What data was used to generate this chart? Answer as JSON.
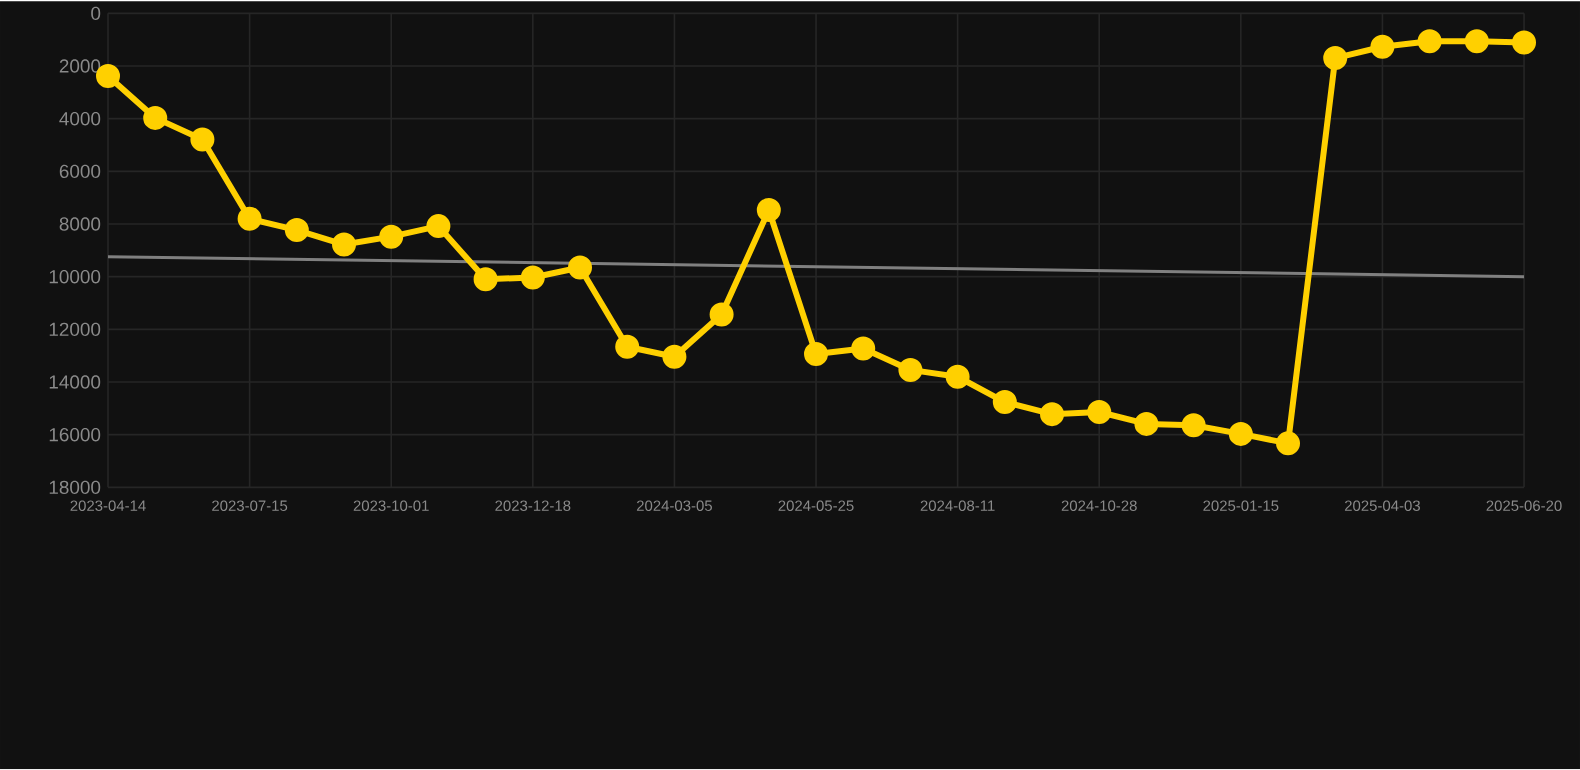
{
  "chart_data": {
    "type": "line",
    "categories": [
      "2023-04-14",
      null,
      null,
      "2023-07-15",
      null,
      null,
      "2023-10-01",
      null,
      null,
      "2023-12-18",
      null,
      null,
      "2024-03-05",
      null,
      null,
      "2024-05-25",
      null,
      null,
      "2024-08-11",
      null,
      null,
      "2024-10-28",
      null,
      null,
      "2025-01-15",
      null,
      null,
      "2025-04-03",
      null,
      null,
      "2025-06-20"
    ],
    "series": [
      {
        "color": "#808080",
        "marker": "none",
        "values": [
          9240,
          null,
          null,
          null,
          null,
          null,
          null,
          null,
          null,
          null,
          null,
          null,
          null,
          null,
          null,
          null,
          null,
          null,
          null,
          null,
          null,
          null,
          null,
          null,
          null,
          null,
          null,
          null,
          null,
          null,
          10000
        ]
      },
      {
        "color": "#ffd000",
        "marker": "circle",
        "values": [
          2380,
          3970,
          4790,
          7800,
          8230,
          8780,
          8480,
          8080,
          10100,
          10030,
          9650,
          12660,
          13040,
          11440,
          7470,
          12940,
          12730,
          13540,
          13800,
          14760,
          15220,
          15140,
          15590,
          15640,
          15970,
          16330,
          1700,
          1270,
          1060,
          1060,
          1110
        ]
      }
    ],
    "ylim": [
      18000,
      0
    ],
    "yticks": [
      0,
      2000,
      4000,
      6000,
      8000,
      10000,
      12000,
      14000,
      16000,
      18000
    ],
    "grid": true,
    "legend": false
  }
}
